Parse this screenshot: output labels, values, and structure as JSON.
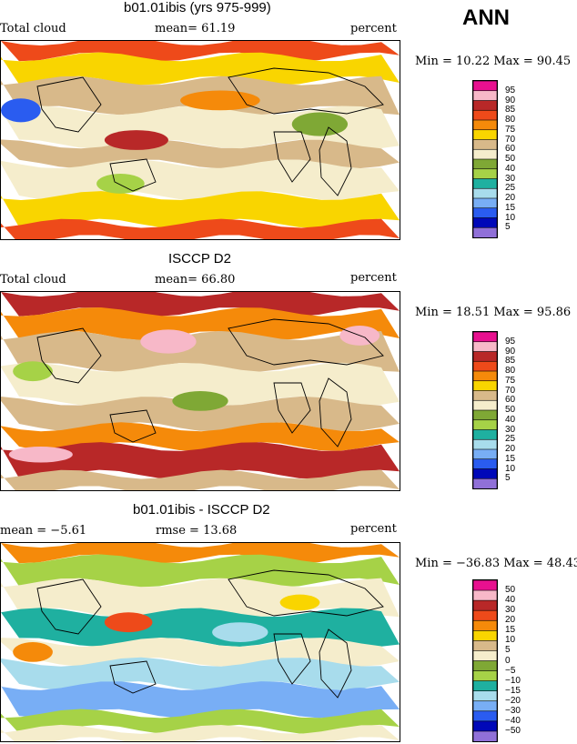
{
  "header": {
    "season": "ANN"
  },
  "panels": [
    {
      "title": "b01.01ibis (yrs 975-999)",
      "left_label": "Total cloud",
      "center_label": "mean=  61.19",
      "units": "percent",
      "minmax": "Min =   10.22 Max =   90.45",
      "colorbar_labels": [
        "95",
        "90",
        "85",
        "80",
        "75",
        "70",
        "60",
        "50",
        "40",
        "30",
        "25",
        "20",
        "15",
        "10",
        "5"
      ]
    },
    {
      "title": "ISCCP D2",
      "left_label": "Total cloud",
      "center_label": "mean=  66.80",
      "units": "percent",
      "minmax": "Min =   18.51 Max =   95.86",
      "colorbar_labels": [
        "95",
        "90",
        "85",
        "80",
        "75",
        "70",
        "60",
        "50",
        "40",
        "30",
        "25",
        "20",
        "15",
        "10",
        "5"
      ]
    },
    {
      "title": "b01.01ibis - ISCCP D2",
      "left_label": "mean =   −5.61",
      "center_label": "rmse =  13.68",
      "units": "percent",
      "minmax": "Min = −36.83 Max =  48.43",
      "colorbar_labels": [
        "50",
        "40",
        "30",
        "20",
        "15",
        "10",
        "5",
        "0",
        "−5",
        "−10",
        "−15",
        "−20",
        "−30",
        "−40",
        "−50"
      ]
    }
  ],
  "colors": {
    "abs_scale": [
      "#e8108f",
      "#f7b8c8",
      "#b82828",
      "#ee4a1a",
      "#f58a0a",
      "#f9d500",
      "#d8b98a",
      "#f5edcc",
      "#7fa835",
      "#a6d247",
      "#1fb0a0",
      "#a8dcec",
      "#78aef5",
      "#2a5cf0",
      "#0008b8",
      "#9070d8"
    ],
    "diff_scale": [
      "#e8108f",
      "#f7b8c8",
      "#b82828",
      "#ee4a1a",
      "#f58a0a",
      "#f9d500",
      "#d8b98a",
      "#f5edcc",
      "#7fa835",
      "#a6d247",
      "#1fb0a0",
      "#a8dcec",
      "#78aef5",
      "#2a5cf0",
      "#0008b8",
      "#9070d8"
    ]
  }
}
